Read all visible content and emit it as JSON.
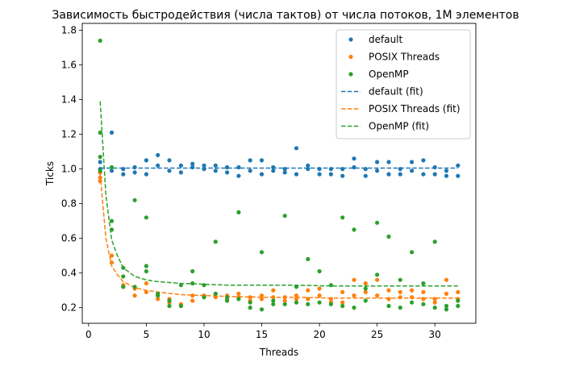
{
  "chart_data": {
    "type": "scatter",
    "title": "Зависимость быстродействия (числа тактов) от числа потоков, 1M элементов",
    "xlabel": "Threads",
    "ylabel": "Ticks",
    "xlim": [
      -0.55,
      33.55
    ],
    "ylim": [
      0.11,
      1.84
    ],
    "xticks": [
      0,
      5,
      10,
      15,
      20,
      25,
      30
    ],
    "yticks": [
      0.2,
      0.4,
      0.6,
      0.8,
      1.0,
      1.2,
      1.4,
      1.6,
      1.8
    ],
    "grid": false,
    "legend_position": "top-right",
    "colors": {
      "default": "#1f77b4",
      "posix": "#ff7f0e",
      "openmp": "#2ca02c"
    },
    "series": [
      {
        "name": "default",
        "kind": "scatter",
        "color": "#1f77b4",
        "x": [
          1,
          1,
          1,
          2,
          2,
          3,
          3,
          4,
          4,
          5,
          5,
          6,
          6,
          7,
          7,
          8,
          8,
          9,
          9,
          10,
          10,
          11,
          11,
          12,
          12,
          13,
          13,
          14,
          14,
          15,
          15,
          16,
          16,
          17,
          17,
          18,
          18,
          19,
          19,
          20,
          20,
          21,
          21,
          22,
          22,
          23,
          23,
          24,
          24,
          25,
          25,
          26,
          26,
          27,
          27,
          28,
          28,
          29,
          29,
          30,
          30,
          31,
          31,
          32,
          32
        ],
        "y": [
          1.04,
          1.0,
          0.98,
          1.21,
          0.99,
          1.0,
          0.97,
          1.01,
          0.98,
          1.05,
          0.97,
          1.08,
          1.02,
          1.05,
          0.99,
          1.02,
          0.98,
          1.03,
          1.01,
          1.02,
          1.0,
          1.02,
          0.99,
          1.01,
          0.98,
          1.01,
          0.96,
          1.05,
          0.99,
          1.05,
          0.97,
          1.01,
          0.99,
          1.0,
          0.98,
          1.12,
          0.97,
          1.02,
          1.0,
          1.0,
          0.97,
          1.0,
          0.97,
          1.0,
          0.96,
          1.06,
          1.01,
          1.0,
          0.96,
          1.04,
          0.99,
          1.04,
          0.97,
          1.0,
          0.97,
          1.04,
          0.99,
          1.05,
          0.97,
          1.01,
          0.97,
          0.99,
          0.96,
          1.02,
          0.96
        ]
      },
      {
        "name": "POSIX Threads",
        "kind": "scatter",
        "color": "#ff7f0e",
        "x": [
          1,
          1,
          1,
          2,
          2,
          3,
          3,
          4,
          4,
          5,
          5,
          6,
          6,
          7,
          7,
          8,
          8,
          9,
          9,
          10,
          10,
          11,
          11,
          12,
          12,
          13,
          13,
          14,
          14,
          15,
          15,
          16,
          16,
          17,
          17,
          18,
          18,
          19,
          19,
          20,
          20,
          21,
          21,
          22,
          22,
          23,
          23,
          24,
          24,
          25,
          25,
          26,
          26,
          27,
          27,
          28,
          28,
          29,
          29,
          30,
          30,
          31,
          31,
          32,
          32
        ],
        "y": [
          0.98,
          0.95,
          0.93,
          0.5,
          0.46,
          0.33,
          0.32,
          0.31,
          0.27,
          0.34,
          0.29,
          0.27,
          0.25,
          0.25,
          0.23,
          0.22,
          0.21,
          0.27,
          0.24,
          0.27,
          0.26,
          0.28,
          0.26,
          0.27,
          0.25,
          0.28,
          0.26,
          0.26,
          0.24,
          0.27,
          0.25,
          0.3,
          0.26,
          0.26,
          0.24,
          0.25,
          0.27,
          0.3,
          0.25,
          0.31,
          0.27,
          0.25,
          0.23,
          0.29,
          0.23,
          0.36,
          0.27,
          0.34,
          0.29,
          0.36,
          0.27,
          0.3,
          0.25,
          0.29,
          0.26,
          0.3,
          0.26,
          0.29,
          0.25,
          0.25,
          0.23,
          0.36,
          0.28,
          0.29,
          0.25
        ]
      },
      {
        "name": "OpenMP",
        "kind": "scatter",
        "color": "#2ca02c",
        "x": [
          1,
          1,
          1,
          1,
          2,
          2,
          2,
          3,
          3,
          3,
          4,
          4,
          5,
          5,
          5,
          6,
          6,
          7,
          7,
          8,
          8,
          9,
          9,
          10,
          10,
          11,
          11,
          12,
          12,
          13,
          13,
          14,
          14,
          15,
          15,
          16,
          16,
          17,
          17,
          18,
          18,
          19,
          19,
          20,
          20,
          21,
          21,
          22,
          22,
          23,
          23,
          24,
          24,
          25,
          25,
          26,
          26,
          27,
          27,
          28,
          28,
          29,
          29,
          30,
          30,
          31,
          31,
          32,
          32
        ],
        "y": [
          1.74,
          1.21,
          1.07,
          0.99,
          0.7,
          0.65,
          1.01,
          0.43,
          0.38,
          0.32,
          0.82,
          0.32,
          0.72,
          0.44,
          0.41,
          0.28,
          0.27,
          0.24,
          0.21,
          0.33,
          0.21,
          0.41,
          0.34,
          0.33,
          0.26,
          0.58,
          0.28,
          0.26,
          0.24,
          0.75,
          0.25,
          0.23,
          0.2,
          0.52,
          0.19,
          0.24,
          0.22,
          0.73,
          0.22,
          0.32,
          0.23,
          0.48,
          0.22,
          0.41,
          0.23,
          0.33,
          0.22,
          0.72,
          0.21,
          0.65,
          0.2,
          0.31,
          0.24,
          0.69,
          0.39,
          0.61,
          0.21,
          0.36,
          0.2,
          0.52,
          0.23,
          0.34,
          0.22,
          0.58,
          0.2,
          0.19,
          0.21,
          0.21,
          0.24
        ]
      },
      {
        "name": "default (fit)",
        "kind": "line",
        "color": "#1f77b4",
        "x": [
          1,
          32
        ],
        "y": [
          1.005,
          1.005
        ]
      },
      {
        "name": "POSIX Threads (fit)",
        "kind": "line",
        "color": "#ff7f0e",
        "x": [
          1,
          1.5,
          2,
          2.5,
          3,
          4,
          5,
          6,
          8,
          10,
          12,
          15,
          18,
          21,
          24,
          27,
          30,
          32
        ],
        "y": [
          0.97,
          0.6,
          0.44,
          0.39,
          0.35,
          0.315,
          0.3,
          0.29,
          0.275,
          0.27,
          0.265,
          0.26,
          0.26,
          0.255,
          0.255,
          0.255,
          0.255,
          0.255
        ]
      },
      {
        "name": "OpenMP (fit)",
        "kind": "line",
        "color": "#2ca02c",
        "x": [
          1,
          1.5,
          2,
          2.5,
          3,
          4,
          5,
          6,
          8,
          10,
          12,
          15,
          18,
          21,
          24,
          27,
          30,
          32
        ],
        "y": [
          1.39,
          0.85,
          0.59,
          0.5,
          0.43,
          0.38,
          0.36,
          0.35,
          0.34,
          0.335,
          0.33,
          0.33,
          0.33,
          0.325,
          0.325,
          0.325,
          0.325,
          0.325
        ]
      }
    ]
  }
}
